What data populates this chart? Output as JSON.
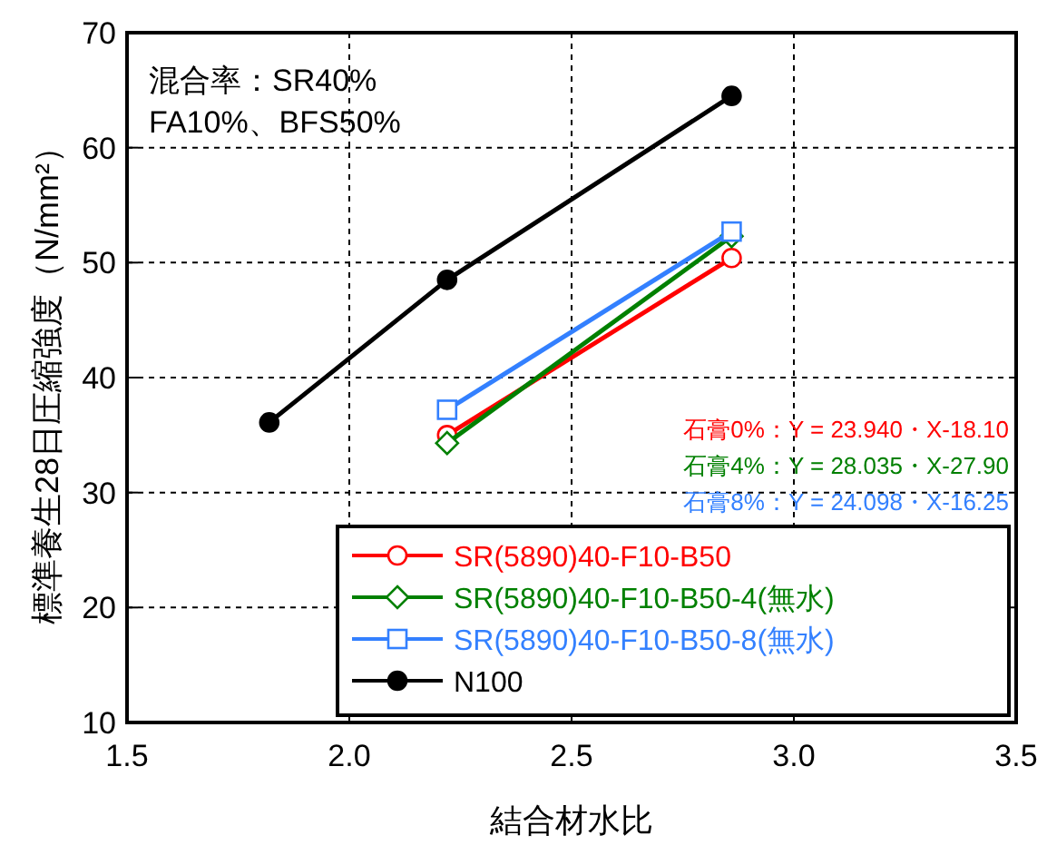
{
  "chart_data": {
    "type": "line",
    "xlabel": "結合材水比",
    "ylabel": "標準養生28日圧縮強度（N/mm²）",
    "xlim": [
      1.5,
      3.5
    ],
    "xticks": [
      {
        "value": 1.5,
        "label": "1.5"
      },
      {
        "value": 2,
        "label": "2.0"
      },
      {
        "value": 2.5,
        "label": "2.5"
      },
      {
        "value": 3,
        "label": "3.0"
      },
      {
        "value": 3.5,
        "label": "3.5"
      }
    ],
    "ylim": [
      10,
      70
    ],
    "yticks": [
      10,
      20,
      30,
      40,
      50,
      60,
      70
    ],
    "grid": true,
    "legend": "bottom right",
    "series": [
      {
        "name": "SR(5890)40-F10-B50",
        "color": "#ff0000",
        "marker": "circle",
        "x": [
          2.22,
          2.86
        ],
        "values": [
          35.0,
          50.4
        ]
      },
      {
        "name": "SR(5890)40-F10-B50-4(無水)",
        "color": "#008000",
        "marker": "diamond",
        "x": [
          2.22,
          2.86
        ],
        "values": [
          34.3,
          52.3
        ]
      },
      {
        "name": "SR(5890)40-F10-B50-8(無水)",
        "color": "#3380ff",
        "marker": "square",
        "x": [
          2.22,
          2.86
        ],
        "values": [
          37.2,
          52.7
        ]
      },
      {
        "name": "N100",
        "color": "#000000",
        "marker": "circle",
        "x": [
          1.82,
          2.22,
          2.86
        ],
        "values": [
          36.1,
          48.5,
          64.5
        ]
      }
    ],
    "annotations": [
      "混合率：SR40%",
      "FA10%、BFS50%",
      "石膏0%：Y = 23.940・X-18.10",
      "石膏4%：Y = 28.035・X-27.90",
      "石膏8%：Y = 24.098・X-16.25"
    ]
  }
}
